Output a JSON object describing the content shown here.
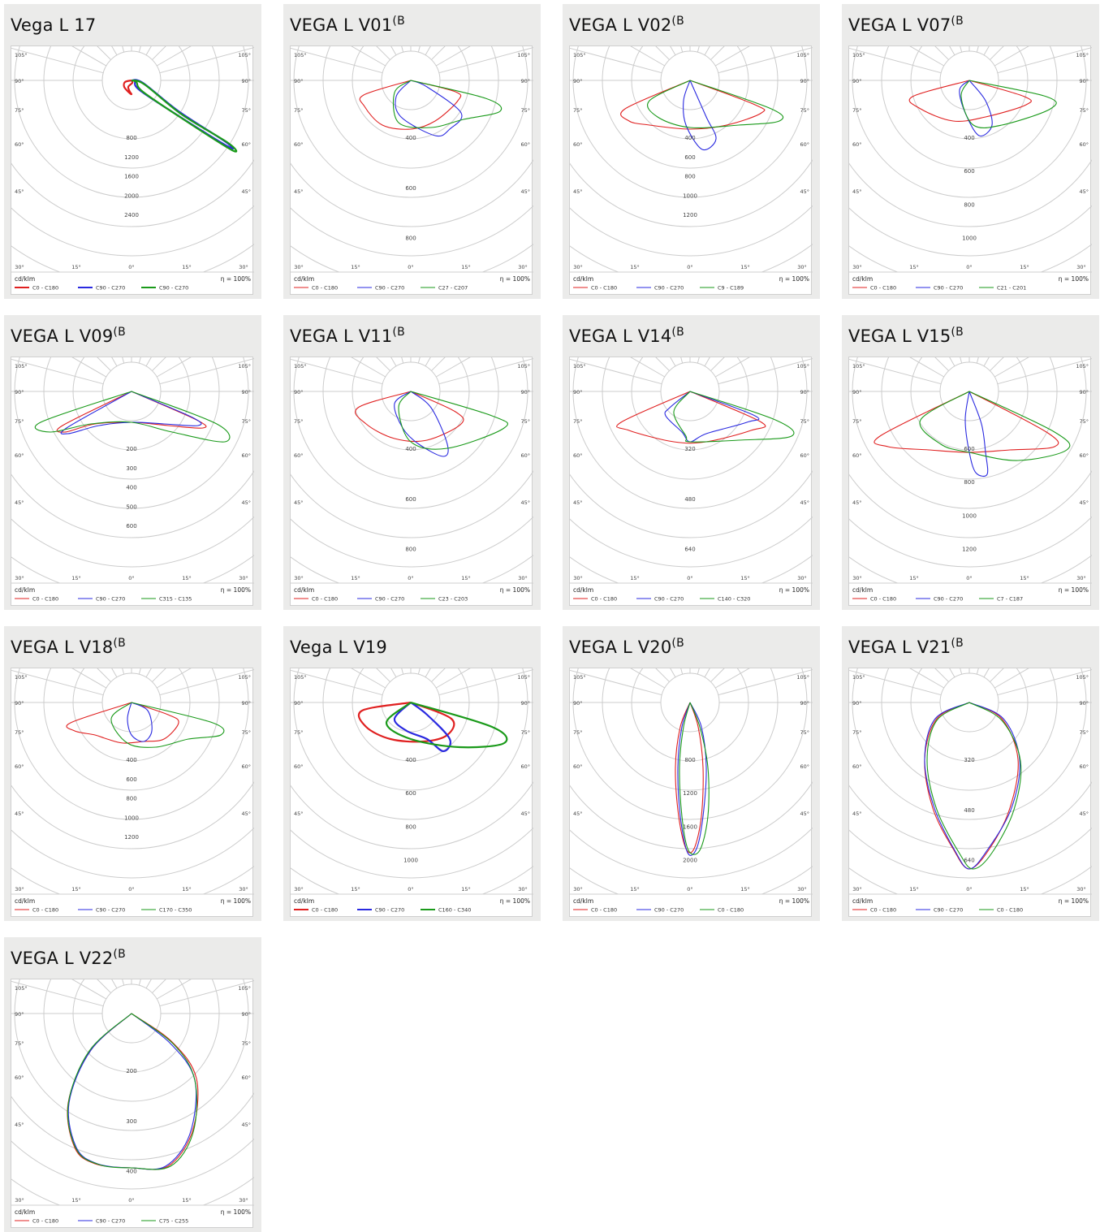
{
  "colors": {
    "red": "#e02020",
    "blue": "#2a2ae0",
    "green": "#1a9a1a",
    "grid": "#cccccc",
    "card_bg": "#ebebea"
  },
  "common": {
    "unit": "cd/klm",
    "efficiency": "η = 100%",
    "left_angle_labels": [
      "105°",
      "90°",
      "75°",
      "60°",
      "45°"
    ],
    "bottom_angle_labels": [
      "30°",
      "15°",
      "0°",
      "15°",
      "30°"
    ]
  },
  "charts": [
    {
      "title": "Vega L 17",
      "sup": "",
      "legend": [
        "C0 - C180",
        "C90 - C270",
        "C90 - C270"
      ],
      "ticks": [
        "800",
        "1200",
        "1600",
        "2000",
        "2400"
      ]
    },
    {
      "title": "VEGA L V01",
      "sup": "(B",
      "legend": [
        "C0 - C180",
        "C90 - C270",
        "C27 - C207"
      ],
      "ticks": [
        "400",
        "600",
        "800"
      ]
    },
    {
      "title": "VEGA L V02",
      "sup": "(B",
      "legend": [
        "C0 - C180",
        "C90 - C270",
        "C9 - C189"
      ],
      "ticks": [
        "400",
        "600",
        "800",
        "1000",
        "1200"
      ]
    },
    {
      "title": "VEGA L V07",
      "sup": "(B",
      "legend": [
        "C0 - C180",
        "C90 - C270",
        "C21 - C201"
      ],
      "ticks": [
        "400",
        "600",
        "800",
        "1000"
      ]
    },
    {
      "title": "VEGA L V09",
      "sup": "(B",
      "legend": [
        "C0 - C180",
        "C90 - C270",
        "C315 - C135"
      ],
      "ticks": [
        "200",
        "300",
        "400",
        "500",
        "600"
      ]
    },
    {
      "title": "VEGA L V11",
      "sup": "(B",
      "legend": [
        "C0 - C180",
        "C90 - C270",
        "C23 - C203"
      ],
      "ticks": [
        "400",
        "600",
        "800"
      ]
    },
    {
      "title": "VEGA L V14",
      "sup": "(B",
      "legend": [
        "C0 - C180",
        "C90 - C270",
        "C140 - C320"
      ],
      "ticks": [
        "320",
        "480",
        "640"
      ]
    },
    {
      "title": "VEGA L V15",
      "sup": "(B",
      "legend": [
        "C0 - C180",
        "C90 - C270",
        "C7 - C187"
      ],
      "ticks": [
        "600",
        "800",
        "1000",
        "1200"
      ]
    },
    {
      "title": "VEGA L V18",
      "sup": "(B",
      "legend": [
        "C0 - C180",
        "C90 - C270",
        "C170 - C350"
      ],
      "ticks": [
        "400",
        "600",
        "800",
        "1000",
        "1200"
      ]
    },
    {
      "title": "Vega L V19",
      "sup": "",
      "legend": [
        "C0 - C180",
        "C90 - C270",
        "C160 - C340"
      ],
      "ticks": [
        "400",
        "600",
        "800",
        "1000"
      ]
    },
    {
      "title": "VEGA L V20",
      "sup": "(B",
      "legend": [
        "C0 - C180",
        "C90 - C270",
        "C0 - C180"
      ],
      "ticks": [
        "800",
        "1200",
        "1600",
        "2000"
      ]
    },
    {
      "title": "VEGA L V21",
      "sup": "(B",
      "legend": [
        "C0 - C180",
        "C90 - C270",
        "C0 - C180"
      ],
      "ticks": [
        "320",
        "480",
        "640"
      ]
    },
    {
      "title": "VEGA L V22",
      "sup": "(B",
      "legend": [
        "C0 - C180",
        "C90 - C270",
        "C75 - C255"
      ],
      "ticks": [
        "200",
        "300",
        "400"
      ]
    }
  ]
}
